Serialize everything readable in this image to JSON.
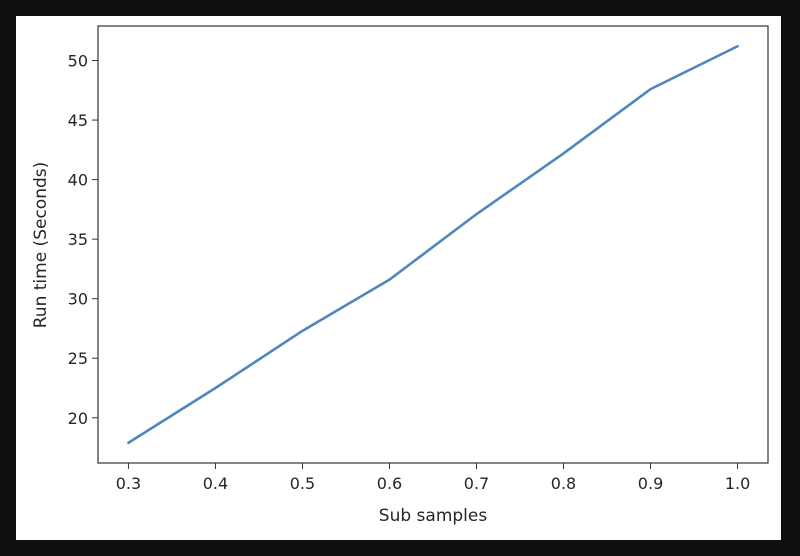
{
  "chart_data": {
    "type": "line",
    "title": "",
    "xlabel": "Sub samples",
    "ylabel": "Run time (Seconds)",
    "x": [
      0.3,
      0.4,
      0.5,
      0.6,
      0.7,
      0.8,
      0.9,
      1.0
    ],
    "series": [
      {
        "values": [
          17.9,
          22.5,
          27.3,
          31.6,
          37.1,
          42.2,
          47.6,
          51.2
        ],
        "color": "#4f86be"
      }
    ],
    "xlim": [
      0.265,
      1.035
    ],
    "ylim": [
      16.2,
      52.9
    ],
    "xticks": [
      0.3,
      0.4,
      0.5,
      0.6,
      0.7,
      0.8,
      0.9,
      1.0
    ],
    "xtick_labels": [
      "0.3",
      "0.4",
      "0.5",
      "0.6",
      "0.7",
      "0.8",
      "0.9",
      "1.0"
    ],
    "yticks": [
      20,
      25,
      30,
      35,
      40,
      45,
      50
    ],
    "ytick_labels": [
      "20",
      "25",
      "30",
      "35",
      "40",
      "45",
      "50"
    ],
    "grid": false,
    "legend": false
  }
}
